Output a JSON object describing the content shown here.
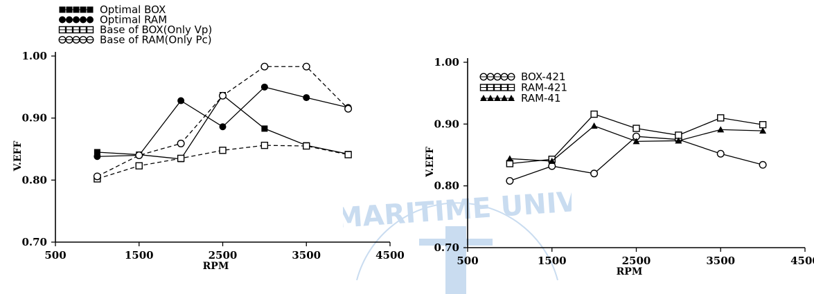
{
  "header_text": "",
  "caption_text": "",
  "watermark_text": "MARITIME UNIVERSITY",
  "colors": {
    "ink": "#000000",
    "watermark": "#c9dcf0"
  },
  "chart_data": [
    {
      "type": "line",
      "title": "",
      "xlabel": "RPM",
      "ylabel": "V.EFF",
      "xlim": [
        500,
        4500
      ],
      "ylim": [
        0.7,
        1.0
      ],
      "xticks": [
        500,
        1500,
        2500,
        3500,
        4500
      ],
      "xtick_labels": [
        "500",
        "1500",
        "2500",
        "3500",
        "4500"
      ],
      "yticks": [
        0.7,
        0.8,
        0.9,
        1.0
      ],
      "ytick_labels": [
        "0.70",
        "0.80",
        "0.90",
        "1.00"
      ],
      "legend_position": "top-left",
      "series": [
        {
          "name": "Optimal BOX",
          "marker": "filled-square",
          "line": "solid",
          "x": [
            1000,
            1500,
            2000,
            2500,
            3000,
            3500,
            4000
          ],
          "y": [
            0.845,
            0.841,
            0.834,
            0.937,
            0.883,
            0.856,
            0.842
          ]
        },
        {
          "name": "Optimal RAM",
          "marker": "filled-circle",
          "line": "solid",
          "x": [
            1000,
            1500,
            2000,
            2500,
            3000,
            3500,
            4000
          ],
          "y": [
            0.838,
            0.84,
            0.928,
            0.886,
            0.95,
            0.933,
            0.917
          ]
        },
        {
          "name": "Base of BOX(Only Vp)",
          "marker": "open-square",
          "line": "dashed",
          "x": [
            1000,
            1500,
            2000,
            2500,
            3000,
            3500,
            4000
          ],
          "y": [
            0.802,
            0.823,
            0.835,
            0.848,
            0.856,
            0.855,
            0.841
          ]
        },
        {
          "name": "Base of RAM(Only Pc)",
          "marker": "open-circle",
          "line": "dashed",
          "x": [
            1000,
            1500,
            2000,
            2500,
            3000,
            3500,
            4000
          ],
          "y": [
            0.806,
            0.84,
            0.859,
            0.936,
            0.983,
            0.983,
            0.915
          ]
        }
      ]
    },
    {
      "type": "line",
      "title": "",
      "xlabel": "RPM",
      "ylabel": "V.EFF",
      "xlim": [
        500,
        4500
      ],
      "ylim": [
        0.7,
        1.0
      ],
      "xticks": [
        500,
        1500,
        2500,
        3500,
        4500
      ],
      "xtick_labels": [
        "500",
        "1500",
        "2500",
        "3500",
        "4500"
      ],
      "yticks": [
        0.7,
        0.8,
        0.9,
        1.0
      ],
      "ytick_labels": [
        "0.70",
        "0.80",
        "0.90",
        "1.00"
      ],
      "legend_position": "top-left",
      "series": [
        {
          "name": "BOX-421",
          "marker": "open-circle",
          "line": "solid",
          "x": [
            1000,
            1500,
            2000,
            2500,
            3000,
            3500,
            4000
          ],
          "y": [
            0.808,
            0.832,
            0.82,
            0.88,
            0.875,
            0.852,
            0.834
          ]
        },
        {
          "name": "RAM-421",
          "marker": "open-square",
          "line": "solid",
          "x": [
            1000,
            1500,
            2000,
            2500,
            3000,
            3500,
            4000
          ],
          "y": [
            0.836,
            0.843,
            0.916,
            0.893,
            0.882,
            0.91,
            0.899
          ]
        },
        {
          "name": "RAM-41",
          "marker": "triangle",
          "line": "solid",
          "x": [
            1000,
            1500,
            2000,
            2500,
            3000,
            3500,
            4000
          ],
          "y": [
            0.844,
            0.84,
            0.897,
            0.872,
            0.873,
            0.891,
            0.889
          ]
        }
      ]
    }
  ]
}
